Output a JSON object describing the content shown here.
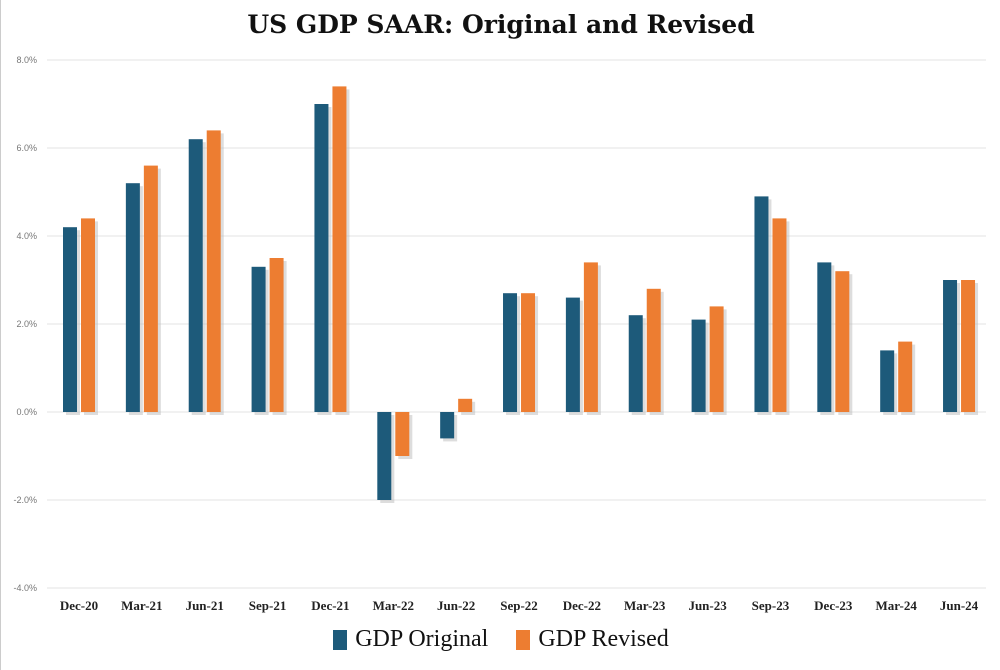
{
  "chart_data": {
    "type": "bar",
    "title": "US GDP SAAR: Original and Revised",
    "categories": [
      "Dec-20",
      "Mar-21",
      "Jun-21",
      "Sep-21",
      "Dec-21",
      "Mar-22",
      "Jun-22",
      "Sep-22",
      "Dec-22",
      "Mar-23",
      "Jun-23",
      "Sep-23",
      "Dec-23",
      "Mar-24",
      "Jun-24"
    ],
    "series": [
      {
        "name": "GDP Original",
        "color": "#1d5a7a",
        "values": [
          4.2,
          5.2,
          6.2,
          3.3,
          7.0,
          -2.0,
          -0.6,
          2.7,
          2.6,
          2.2,
          2.1,
          4.9,
          3.4,
          1.4,
          3.0
        ]
      },
      {
        "name": "GDP Revised",
        "color": "#ed7d31",
        "values": [
          4.4,
          5.6,
          6.4,
          3.5,
          7.4,
          -1.0,
          0.3,
          2.7,
          3.4,
          2.8,
          2.4,
          4.4,
          3.2,
          1.6,
          3.0
        ]
      }
    ],
    "ylim": [
      -4,
      8
    ],
    "yticks": [
      "-4.0%",
      "-2.0%",
      "0.0%",
      "2.0%",
      "4.0%",
      "6.0%",
      "8.0%"
    ],
    "ytick_values": [
      -4,
      -2,
      0,
      2,
      4,
      6,
      8
    ],
    "grid": true,
    "legend": "bottom"
  }
}
